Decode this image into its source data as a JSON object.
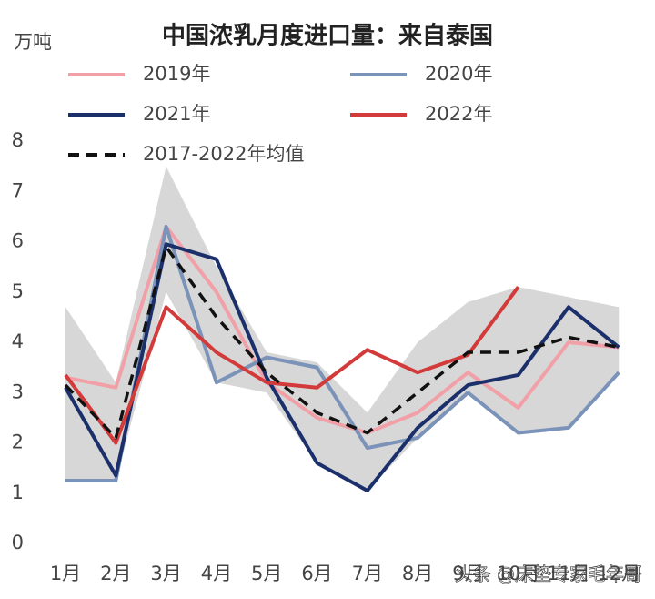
{
  "chart_data": {
    "type": "line",
    "title": "中国浓乳月度进口量：来自泰国",
    "y_label": "万吨",
    "watermark": "头条 @床垫专家毛年哥",
    "categories": [
      "1月",
      "2月",
      "3月",
      "4月",
      "5月",
      "6月",
      "7月",
      "8月",
      "9月",
      "10月",
      "11月",
      "12月"
    ],
    "band": {
      "color": "#c9c9c9",
      "low": [
        1.25,
        1.25,
        5.0,
        3.2,
        3.0,
        1.6,
        1.05,
        2.1,
        3.0,
        2.2,
        2.3,
        3.4
      ],
      "high": [
        4.7,
        3.2,
        7.5,
        5.5,
        3.8,
        3.6,
        2.6,
        4.0,
        4.8,
        5.1,
        4.9,
        4.7
      ]
    },
    "series": [
      {
        "name": "2019年",
        "color": "#f2a0a8",
        "dash": false,
        "values": [
          3.3,
          3.1,
          6.3,
          5.0,
          3.2,
          2.5,
          2.2,
          2.6,
          3.4,
          2.7,
          4.0,
          3.9
        ]
      },
      {
        "name": "2020年",
        "color": "#7b93b8",
        "dash": false,
        "values": [
          1.25,
          1.25,
          6.3,
          3.2,
          3.7,
          3.5,
          1.9,
          2.1,
          3.0,
          2.2,
          2.3,
          3.4
        ]
      },
      {
        "name": "2021年",
        "color": "#1b2f6b",
        "dash": false,
        "values": [
          3.1,
          1.35,
          5.95,
          5.65,
          3.3,
          1.6,
          1.05,
          2.3,
          3.15,
          3.35,
          4.7,
          3.9
        ]
      },
      {
        "name": "2022年",
        "color": "#d33a3a",
        "dash": false,
        "values": [
          3.35,
          2.0,
          4.7,
          3.8,
          3.2,
          3.1,
          3.85,
          3.4,
          3.75,
          5.1,
          null,
          null
        ]
      },
      {
        "name": "2017-2022年均值",
        "color": "#111111",
        "dash": true,
        "values": [
          3.15,
          2.1,
          5.9,
          4.5,
          3.4,
          2.6,
          2.2,
          3.0,
          3.8,
          3.8,
          4.1,
          3.9
        ]
      }
    ],
    "ylim": [
      0,
      8
    ],
    "yticks": [
      0,
      1,
      2,
      3,
      4,
      5,
      6,
      7,
      8
    ]
  }
}
